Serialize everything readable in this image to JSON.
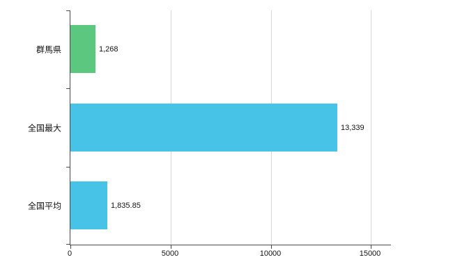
{
  "chart_data": {
    "type": "bar",
    "orientation": "horizontal",
    "title": "",
    "xlabel": "",
    "ylabel": "",
    "categories": [
      "群馬県",
      "全国最大",
      "全国平均"
    ],
    "values": [
      1268,
      13339,
      1835.85
    ],
    "value_labels": [
      "1,268",
      "13,339",
      "1,835.85"
    ],
    "bar_colors": [
      "#5cc77f",
      "#47c3e8",
      "#47c3e8"
    ],
    "xlim": [
      0,
      16000
    ],
    "x_ticks": [
      0,
      5000,
      10000,
      15000
    ],
    "x_tick_labels": [
      "0",
      "5000",
      "10000",
      "15000"
    ],
    "grid": "vertical",
    "legend": "none",
    "colors": {
      "background": "#ffffff",
      "grid": "#d9d9d9",
      "axis": "#4a4a4a",
      "text": "#111111"
    }
  }
}
